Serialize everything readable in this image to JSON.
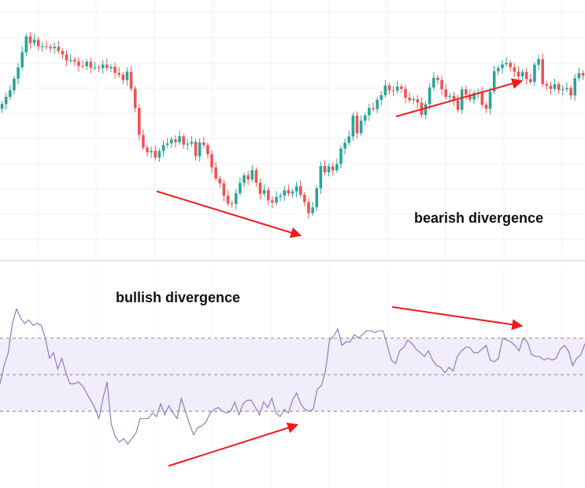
{
  "chart_data": [
    {
      "type": "candlestick",
      "title": "",
      "ylim": [
        0,
        100
      ],
      "grid": true,
      "colors": {
        "up": "#26a69a",
        "down": "#ef5350",
        "wick_up": "#26a69a",
        "wick_down": "#ef5350"
      },
      "close": [
        60.3,
        63.4,
        66.2,
        71.2,
        76.1,
        82.6,
        89.4,
        86.5,
        88.0,
        85.2,
        85.2,
        84.9,
        84.3,
        85.0,
        83.1,
        81.6,
        79.1,
        79.3,
        78.6,
        76.7,
        76.6,
        78.5,
        76.0,
        76.0,
        75.8,
        77.3,
        75.8,
        76.3,
        73.7,
        72.9,
        70.6,
        74.2,
        66.9,
        58.6,
        47.0,
        41.5,
        39.5,
        40.1,
        37.2,
        40.0,
        42.7,
        43.3,
        45.0,
        43.9,
        46.4,
        42.8,
        43.2,
        44.0,
        37.8,
        43.7,
        42.6,
        38.6,
        33.0,
        28.2,
        26.1,
        20.8,
        17.5,
        17.3,
        21.9,
        26.3,
        29.6,
        27.8,
        31.8,
        26.4,
        21.6,
        23.2,
        18.8,
        17.8,
        20.3,
        20.8,
        23.2,
        21.8,
        22.6,
        24.9,
        21.2,
        18.0,
        13.3,
        15.8,
        24.0,
        33.6,
        30.9,
        33.4,
        31.8,
        34.4,
        41.1,
        43.6,
        46.3,
        55.3,
        47.7,
        53.1,
        55.4,
        58.6,
        58.1,
        62.1,
        64.1,
        68.3,
        66.2,
        66.0,
        67.8,
        66.8,
        63.0,
        61.9,
        62.4,
        60.9,
        55.6,
        60.2,
        67.4,
        71.6,
        70.6,
        66.6,
        63.3,
        63.8,
        61.8,
        57.8,
        66.6,
        64.4,
        62.2,
        65.0,
        65.1,
        60.0,
        58.3,
        65.7,
        74.4,
        75.8,
        77.4,
        78.0,
        76.1,
        74.2,
        72.2,
        74.1,
        71.0,
        69.8,
        77.2,
        79.6,
        68.9,
        68.1,
        66.8,
        68.8,
        66.3,
        66.7,
        67.2,
        64.0,
        71.4,
        73.6,
        72.5
      ]
    },
    {
      "type": "line",
      "title": "",
      "ylim": [
        0,
        100
      ],
      "reference_lines": [
        70,
        50,
        30
      ],
      "band": [
        30,
        70
      ],
      "colors": {
        "line": "#8e7cc3",
        "band": "#f1edfb",
        "ref": "#888888"
      },
      "values": [
        45,
        55,
        62,
        78,
        86,
        81,
        78,
        80,
        77,
        78,
        77,
        70,
        59,
        62,
        53,
        59,
        51,
        45,
        45,
        46,
        44,
        40,
        36,
        32,
        26,
        37,
        46,
        23,
        16,
        13,
        15,
        12,
        15,
        18,
        26,
        26,
        26,
        29,
        27,
        34,
        28,
        33,
        29,
        26,
        37,
        30,
        23,
        17,
        21,
        22,
        24,
        29,
        31,
        32,
        30,
        29,
        30,
        35,
        28,
        34,
        36,
        36,
        32,
        28,
        35,
        32,
        37,
        29,
        27,
        31,
        29,
        36,
        40,
        34,
        31,
        30,
        31,
        42,
        44,
        52,
        69,
        71,
        75,
        66,
        68,
        68,
        72,
        70,
        72,
        74,
        74,
        73,
        74,
        74,
        66,
        58,
        56,
        63,
        65,
        69,
        67,
        64,
        62,
        60,
        63,
        58,
        55,
        54,
        51,
        54,
        52,
        60,
        63,
        65,
        65,
        62,
        62,
        64,
        66,
        58,
        57,
        59,
        70,
        69,
        68,
        66,
        63,
        70,
        68,
        61,
        60,
        60,
        58,
        59,
        58,
        59,
        64,
        66,
        63,
        55,
        59,
        61,
        67
      ]
    }
  ],
  "annotations": {
    "bearish": "bearish divergence",
    "bullish": "bullish divergence"
  }
}
